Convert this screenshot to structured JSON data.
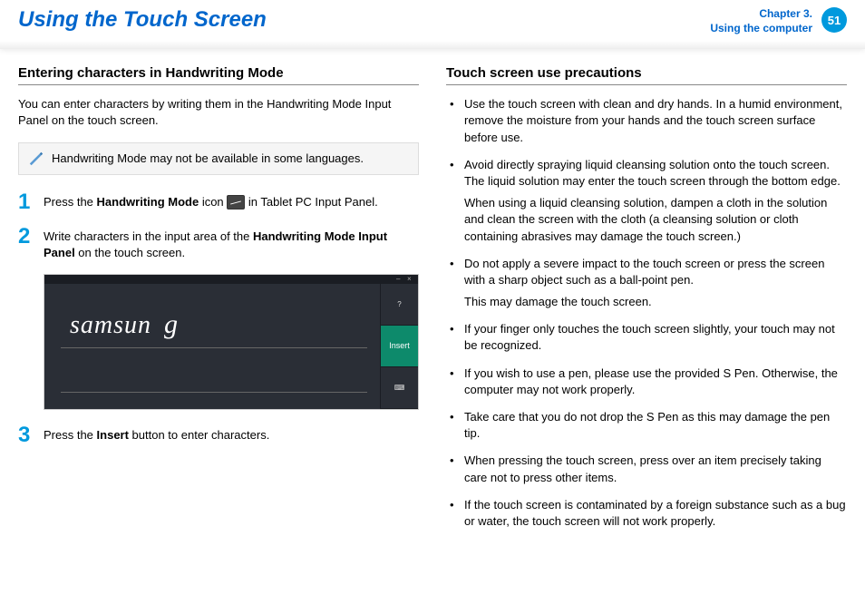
{
  "header": {
    "title": "Using the Touch Screen",
    "chapter_line1": "Chapter 3.",
    "chapter_line2": "Using the computer",
    "page_number": "51"
  },
  "left": {
    "section_title": "Entering characters in Handwriting Mode",
    "intro": "You can enter characters by writing them in the Handwriting Mode Input Panel on the touch screen.",
    "note": "Handwriting Mode may not be available in some languages.",
    "steps": {
      "s1_num": "1",
      "s1_pre": "Press the ",
      "s1_bold": "Handwriting Mode",
      "s1_mid": " icon ",
      "s1_post": " in Tablet PC Input Panel.",
      "s2_num": "2",
      "s2_pre": "Write characters in the input area of the ",
      "s2_bold": "Handwriting Mode Input Panel",
      "s2_post": " on the touch screen.",
      "s3_num": "3",
      "s3_pre": "Press the ",
      "s3_bold": "Insert",
      "s3_post": " button to enter characters."
    },
    "screenshot": {
      "written_text": "samsun",
      "written_tail": "g",
      "insert_label": "Insert",
      "help_glyph": "?",
      "kbd_glyph": "⌨"
    }
  },
  "right": {
    "section_title": "Touch screen use precautions",
    "items": [
      {
        "text": "Use the touch screen with clean and dry hands. In a humid environment, remove the moisture from your hands and the touch screen surface before use."
      },
      {
        "text": "Avoid directly spraying liquid cleansing solution onto the touch screen. The liquid solution may enter the touch screen through the bottom edge.",
        "sub": "When using a liquid cleansing solution, dampen a cloth in the solution and clean the screen with the cloth (a cleansing solution or cloth containing abrasives may damage the touch screen.)"
      },
      {
        "text": "Do not apply a severe impact to the touch screen or press the screen with a sharp object such as a ball-point pen.",
        "sub": "This may damage the touch screen."
      },
      {
        "text": "If your finger only touches the touch screen slightly, your touch may not be recognized."
      },
      {
        "text": "If you wish to use a pen, please use the provided S Pen. Otherwise, the computer may not work properly."
      },
      {
        "text": "Take care that you do not drop the S Pen as this may damage the pen tip."
      },
      {
        "text": "When pressing the touch screen, press over an item precisely taking care not to press other items."
      },
      {
        "text": "If the touch screen is contaminated by a foreign substance such as a bug or water, the touch screen will not work properly."
      }
    ]
  }
}
